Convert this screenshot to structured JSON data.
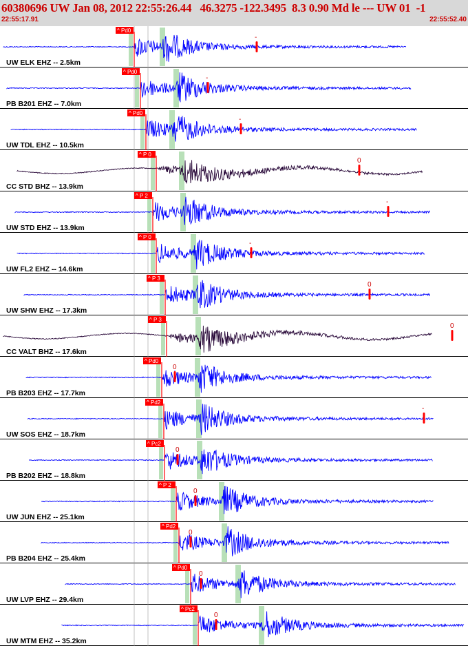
{
  "header": {
    "title": "60380696 UW Jan 08, 2012 22:55:26.44   46.3275 -122.3495  8.3 0.90 Md le --- UW 01  -1",
    "start_time": "22:55:17.91",
    "end_time": "22:55:52.40"
  },
  "colors": {
    "trace": "#0000ff",
    "broadband": "#2a0a3a",
    "pick": "#ff0000",
    "s_band": "#b8e0b8",
    "header_bg": "#d8d8d8",
    "title": "#cc0000"
  },
  "traces": [
    {
      "label": "UW ELK EHZ -- 2.5km",
      "pick": "Pd0",
      "type": "short",
      "marker": "-"
    },
    {
      "label": "PB B201 EHZ -- 7.0km",
      "pick": "Pd0",
      "type": "short",
      "marker": "-"
    },
    {
      "label": "UW TDL EHZ -- 10.5km",
      "pick": "Pd0",
      "type": "short",
      "marker": "-"
    },
    {
      "label": "CC STD BHZ -- 13.9km",
      "pick": "P 0",
      "type": "broad",
      "marker": "0"
    },
    {
      "label": "UW STD EHZ -- 13.9km",
      "pick": "P 2",
      "type": "short",
      "marker": "-"
    },
    {
      "label": "UW FL2 EHZ -- 14.6km",
      "pick": "P 0",
      "type": "short",
      "marker": "-"
    },
    {
      "label": "UW SHW EHZ -- 17.3km",
      "pick": "P 3",
      "type": "short",
      "marker": "0"
    },
    {
      "label": "CC VALT BHZ -- 17.6km",
      "pick": "P 3",
      "type": "broad",
      "marker": "0"
    },
    {
      "label": "PB B203 EHZ -- 17.7km",
      "pick": "Pd0",
      "type": "short",
      "marker": "0"
    },
    {
      "label": "UW SOS EHZ -- 18.7km",
      "pick": "Pd2",
      "type": "short",
      "marker": "-"
    },
    {
      "label": "PB B202 EHZ -- 18.8km",
      "pick": "Pc2",
      "type": "short",
      "marker": "0"
    },
    {
      "label": "UW JUN EHZ -- 25.1km",
      "pick": "P 2",
      "type": "short",
      "marker": "0"
    },
    {
      "label": "PB B204 EHZ -- 25.4km",
      "pick": "Pd2",
      "type": "short",
      "marker": "0"
    },
    {
      "label": "UW LVP EHZ -- 29.4km",
      "pick": "Pd0",
      "type": "short",
      "marker": "0"
    },
    {
      "label": "UW MTM EHZ -- 35.2km",
      "pick": "Pc2",
      "type": "short",
      "marker": "0"
    }
  ]
}
